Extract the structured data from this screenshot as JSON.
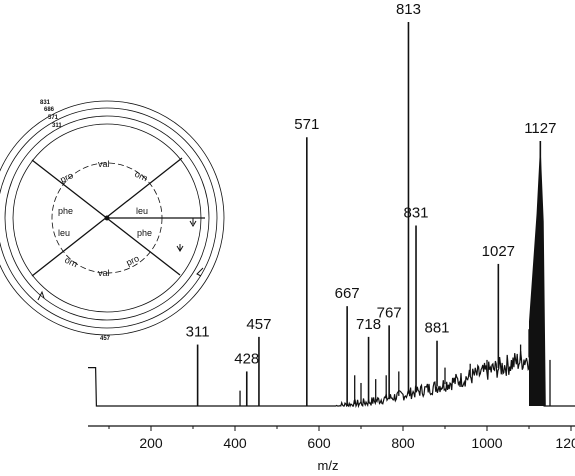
{
  "chart_data": {
    "type": "line",
    "title": "",
    "xlabel": "m/z",
    "ylabel": "",
    "xlim": [
      50,
      1300
    ],
    "ylim": [
      0,
      100
    ],
    "x_ticks": [
      200,
      400,
      600,
      800,
      1000,
      1200
    ],
    "x_tick_labels": [
      "200",
      "400",
      "600",
      "800",
      "1000",
      "1200"
    ],
    "grid": false,
    "peaks": [
      {
        "mz": 311,
        "intensity": 16,
        "label": "311"
      },
      {
        "mz": 428,
        "intensity": 9,
        "label": "428"
      },
      {
        "mz": 457,
        "intensity": 18,
        "label": "457"
      },
      {
        "mz": 571,
        "intensity": 70,
        "label": "571"
      },
      {
        "mz": 667,
        "intensity": 26,
        "label": "667"
      },
      {
        "mz": 718,
        "intensity": 18,
        "label": "718"
      },
      {
        "mz": 767,
        "intensity": 21,
        "label": "767"
      },
      {
        "mz": 813,
        "intensity": 100,
        "label": "813"
      },
      {
        "mz": 831,
        "intensity": 47,
        "label": "831"
      },
      {
        "mz": 881,
        "intensity": 17,
        "label": "881"
      },
      {
        "mz": 1027,
        "intensity": 37,
        "label": "1027"
      },
      {
        "mz": 1127,
        "intensity": 69,
        "label": "1127"
      }
    ],
    "minor_peaks": [
      {
        "mz": 412,
        "intensity": 4
      },
      {
        "mz": 685,
        "intensity": 8
      },
      {
        "mz": 700,
        "intensity": 6
      },
      {
        "mz": 735,
        "intensity": 7
      },
      {
        "mz": 760,
        "intensity": 8
      },
      {
        "mz": 790,
        "intensity": 9
      },
      {
        "mz": 900,
        "intensity": 10
      },
      {
        "mz": 960,
        "intensity": 11
      },
      {
        "mz": 1000,
        "intensity": 12
      },
      {
        "mz": 1080,
        "intensity": 16
      },
      {
        "mz": 1100,
        "intensity": 20
      },
      {
        "mz": 1110,
        "intensity": 24
      },
      {
        "mz": 1150,
        "intensity": 12
      }
    ],
    "inset": {
      "ring_labels": [
        "831",
        "686",
        "571",
        "311",
        "457"
      ],
      "residues": [
        "pro",
        "val",
        "orn",
        "phe",
        "leu",
        "leu",
        "phe",
        "orn",
        "val",
        "pro"
      ]
    }
  }
}
